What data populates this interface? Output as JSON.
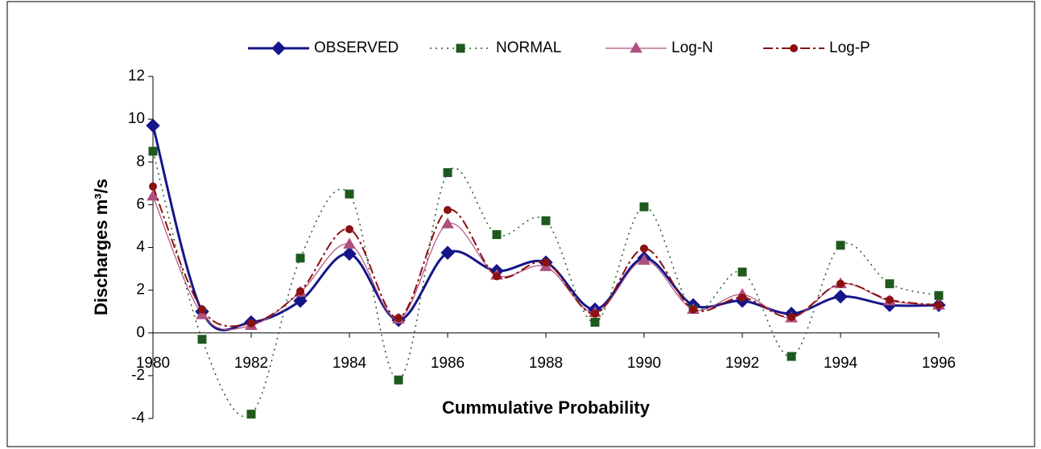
{
  "chart_data": {
    "type": "line",
    "x_label": "Cummulative Probability",
    "y_label": "Discharges m³/s",
    "x": [
      1980,
      1981,
      1982,
      1983,
      1984,
      1985,
      1986,
      1987,
      1988,
      1989,
      1990,
      1991,
      1992,
      1993,
      1994,
      1995,
      1996
    ],
    "xlim": [
      1980,
      1996
    ],
    "xticks": [
      1980,
      1982,
      1984,
      1986,
      1988,
      1990,
      1992,
      1994,
      1996
    ],
    "ylim": [
      -4,
      12
    ],
    "yticks": [
      -4,
      -2,
      0,
      2,
      4,
      6,
      8,
      10,
      12
    ],
    "legend": "top",
    "smooth": true,
    "series": [
      {
        "name": "OBSERVED",
        "color": "#15158a",
        "marker": "diamond",
        "dash": "solid",
        "width": 3,
        "values": [
          9.7,
          1.0,
          0.5,
          1.5,
          3.7,
          0.6,
          3.75,
          2.9,
          3.3,
          1.1,
          3.5,
          1.3,
          1.5,
          0.9,
          1.7,
          1.3,
          1.3
        ]
      },
      {
        "name": "NORMAL",
        "color": "#1e5a1e",
        "marker": "square",
        "dash": "2,5",
        "width": 1.5,
        "values": [
          8.5,
          -0.3,
          -3.8,
          3.5,
          6.5,
          -2.2,
          7.5,
          4.6,
          5.25,
          0.5,
          5.9,
          1.1,
          2.85,
          -1.1,
          4.1,
          2.3,
          1.75
        ]
      },
      {
        "name": "Log-N",
        "color": "#b0507f",
        "marker": "triangle",
        "dash": "solid",
        "width": 1.2,
        "values": [
          6.4,
          0.85,
          0.35,
          1.9,
          4.15,
          0.65,
          5.1,
          2.7,
          3.1,
          0.95,
          3.4,
          1.1,
          1.8,
          0.7,
          2.3,
          1.5,
          1.3
        ]
      },
      {
        "name": "Log-P",
        "color": "#8b1010",
        "marker": "circle",
        "dash": "12,4,3,4",
        "width": 2,
        "values": [
          6.85,
          1.1,
          0.45,
          1.95,
          4.85,
          0.7,
          5.75,
          2.65,
          3.3,
          0.9,
          3.95,
          1.1,
          1.65,
          0.75,
          2.3,
          1.55,
          1.3
        ]
      }
    ]
  }
}
